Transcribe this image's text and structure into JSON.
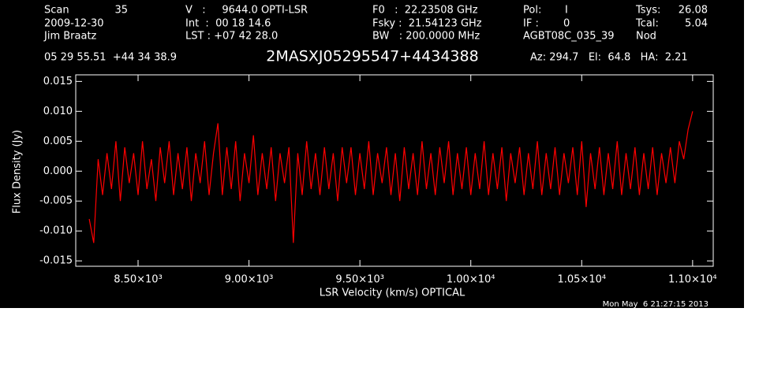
{
  "header": {
    "scan_label": "Scan",
    "scan": "35",
    "date": "2009-12-30",
    "observer": "Jim Braatz",
    "velocity": "V   :     9644.0 OPTI-LSR",
    "int": "Int  :  00 18 14.6",
    "lst": "LST : +07 42 28.0",
    "f0": "F0   :  22.23508 GHz",
    "fsky": "Fsky :  21.54123 GHz",
    "bw": "BW   : 200.0000 MHz",
    "pol_label": "Pol:",
    "pol": "I",
    "if_label": "IF :",
    "if": "0",
    "project": "AGBT08C_035_39",
    "tsys_label": "Tsys:",
    "tsys": "26.08",
    "tcal_label": "Tcal:",
    "tcal": "5.04",
    "proc": "Nod",
    "coords": "05 29 55.51  +44 34 38.9",
    "azelha": "Az: 294.7   El:  64.8   HA:  2.21"
  },
  "chart_data": {
    "type": "line",
    "title": "2MASXJ05295547+4434388",
    "x_label": "LSR Velocity (km/s) OPTICAL",
    "y_label": "Flux Density (Jy)",
    "color": "#ff0000",
    "x": [
      8280,
      8300,
      8320,
      8340,
      8360,
      8380,
      8400,
      8420,
      8440,
      8460,
      8480,
      8500,
      8520,
      8540,
      8560,
      8580,
      8600,
      8620,
      8640,
      8660,
      8680,
      8700,
      8720,
      8740,
      8760,
      8780,
      8800,
      8820,
      8840,
      8860,
      8880,
      8900,
      8920,
      8940,
      8960,
      8980,
      9000,
      9020,
      9040,
      9060,
      9080,
      9100,
      9120,
      9140,
      9160,
      9180,
      9200,
      9220,
      9240,
      9260,
      9280,
      9300,
      9320,
      9340,
      9360,
      9380,
      9400,
      9420,
      9440,
      9460,
      9480,
      9500,
      9520,
      9540,
      9560,
      9580,
      9600,
      9620,
      9640,
      9660,
      9680,
      9700,
      9720,
      9740,
      9760,
      9780,
      9800,
      9820,
      9840,
      9860,
      9880,
      9900,
      9920,
      9940,
      9960,
      9980,
      10000,
      10020,
      10040,
      10060,
      10080,
      10100,
      10120,
      10140,
      10160,
      10180,
      10200,
      10220,
      10240,
      10260,
      10280,
      10300,
      10320,
      10340,
      10360,
      10380,
      10400,
      10420,
      10440,
      10460,
      10480,
      10500,
      10520,
      10540,
      10560,
      10580,
      10600,
      10620,
      10640,
      10660,
      10680,
      10700,
      10720,
      10740,
      10760,
      10780,
      10800,
      10820,
      10840,
      10860,
      10880,
      10900,
      10920,
      10940,
      10960,
      10980,
      11000
    ],
    "values": [
      -0.008,
      -0.012,
      0.002,
      -0.004,
      0.003,
      -0.003,
      0.005,
      -0.005,
      0.004,
      -0.002,
      0.003,
      -0.004,
      0.005,
      -0.003,
      0.002,
      -0.005,
      0.004,
      -0.002,
      0.005,
      -0.004,
      0.003,
      -0.003,
      0.004,
      -0.005,
      0.003,
      -0.002,
      0.005,
      -0.004,
      0.003,
      0.008,
      -0.004,
      0.004,
      -0.003,
      0.005,
      -0.005,
      0.003,
      -0.002,
      0.006,
      -0.004,
      0.003,
      -0.003,
      0.004,
      -0.005,
      0.003,
      -0.002,
      0.004,
      -0.012,
      0.003,
      -0.004,
      0.005,
      -0.003,
      0.003,
      -0.004,
      0.004,
      -0.003,
      0.003,
      -0.005,
      0.004,
      -0.002,
      0.004,
      -0.004,
      0.003,
      -0.003,
      0.005,
      -0.004,
      0.003,
      -0.002,
      0.004,
      -0.004,
      0.003,
      -0.005,
      0.004,
      -0.003,
      0.003,
      -0.004,
      0.005,
      -0.003,
      0.003,
      -0.004,
      0.004,
      -0.002,
      0.005,
      -0.004,
      0.003,
      -0.003,
      0.004,
      -0.004,
      0.003,
      -0.003,
      0.005,
      -0.004,
      0.003,
      -0.003,
      0.004,
      -0.005,
      0.003,
      -0.002,
      0.004,
      -0.004,
      0.003,
      -0.003,
      0.005,
      -0.004,
      0.003,
      -0.003,
      0.004,
      -0.004,
      0.003,
      -0.002,
      0.004,
      -0.004,
      0.005,
      -0.006,
      0.003,
      -0.003,
      0.004,
      -0.004,
      0.003,
      -0.003,
      0.005,
      -0.004,
      0.003,
      -0.003,
      0.004,
      -0.004,
      0.003,
      -0.003,
      0.004,
      -0.004,
      0.003,
      -0.002,
      0.004,
      -0.002,
      0.005,
      0.002,
      0.007,
      0.01
    ],
    "xlim": [
      8219,
      11093
    ],
    "ylim": [
      -0.0159,
      0.0161
    ],
    "xticks": [
      {
        "value": 8500,
        "label": "8.50×10³"
      },
      {
        "value": 9000,
        "label": "9.00×10³"
      },
      {
        "value": 9500,
        "label": "9.50×10³"
      },
      {
        "value": 10000,
        "label": "1.00×10⁴"
      },
      {
        "value": 10500,
        "label": "1.05×10⁴"
      },
      {
        "value": 11000,
        "label": "1.10×10⁴"
      }
    ],
    "yticks": [
      0.015,
      {
        "value": 0.01,
        "label": "0.010"
      },
      0.005,
      {
        "value": 0,
        "label": "0.000"
      },
      -0.005,
      {
        "value": -0.01,
        "label": "-0.010"
      },
      -0.015
    ]
  },
  "footer": {
    "timestamp": "Mon May  6 21:27:15 2013"
  }
}
